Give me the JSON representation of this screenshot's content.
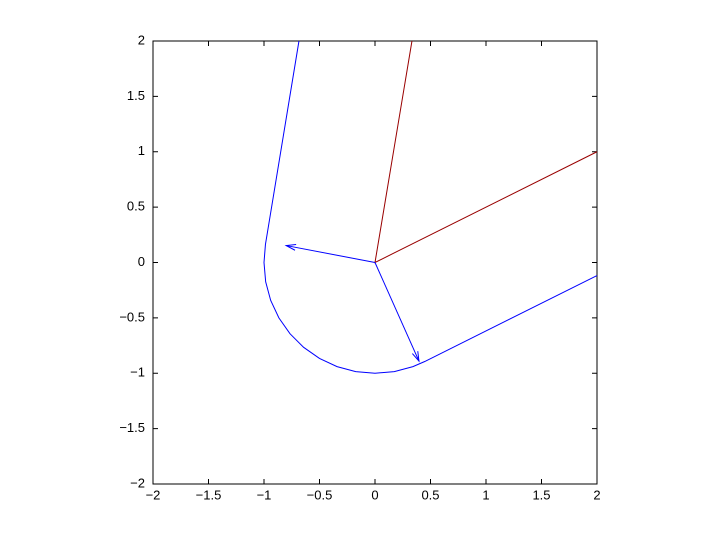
{
  "chart_data": {
    "type": "line",
    "xlim": [
      -2,
      2
    ],
    "ylim": [
      -2,
      2
    ],
    "xticks": [
      {
        "value": -2,
        "label": "−2"
      },
      {
        "value": -1.5,
        "label": "−1.5"
      },
      {
        "value": -1,
        "label": "−1"
      },
      {
        "value": -0.5,
        "label": "−0.5"
      },
      0,
      0.5,
      1,
      1.5,
      2
    ],
    "yticks": [
      {
        "value": -2,
        "label": "−2"
      },
      {
        "value": -1.5,
        "label": "−1.5"
      },
      {
        "value": -1,
        "label": "−1"
      },
      {
        "value": -0.5,
        "label": "−0.5"
      },
      0,
      0.5,
      1,
      1.5,
      2
    ],
    "series": [
      {
        "color": "#990000",
        "x": [
          0.333,
          0,
          2
        ],
        "values": [
          2,
          0,
          1
        ]
      },
      {
        "color": "#0000ff",
        "x": [
          -0.685,
          -0.987,
          -1,
          -0.985,
          -0.94,
          -0.866,
          -0.766,
          -0.643,
          -0.5,
          -0.342,
          -0.174,
          0,
          0.174,
          0.342,
          0.448,
          2
        ],
        "values": [
          2,
          0.163,
          0,
          -0.174,
          -0.342,
          -0.5,
          -0.643,
          -0.766,
          -0.866,
          -0.94,
          -0.985,
          -1,
          -0.985,
          -0.94,
          -0.894,
          -0.118
        ]
      },
      {
        "color": "#0000ff",
        "arrow": true,
        "x": [
          0,
          -0.8
        ],
        "values": [
          0,
          0.153
        ]
      },
      {
        "color": "#0000ff",
        "arrow": true,
        "x": [
          0,
          0.396
        ],
        "values": [
          0,
          -0.89
        ]
      }
    ]
  }
}
